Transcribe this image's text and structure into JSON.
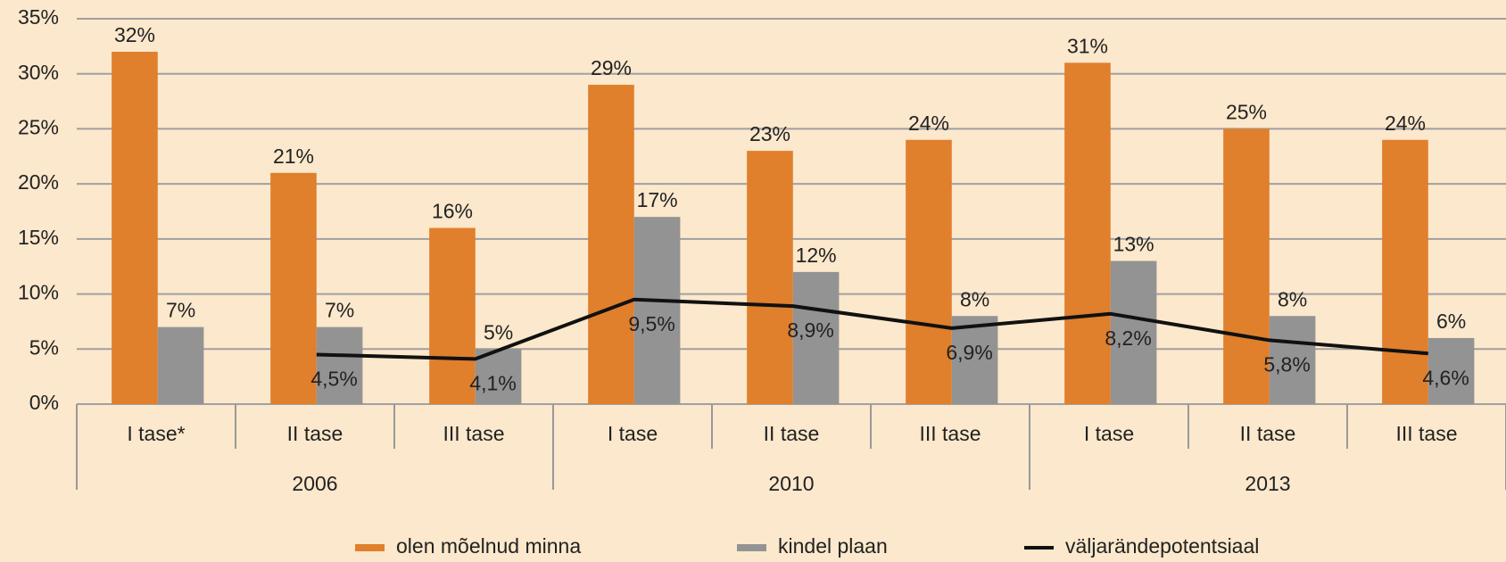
{
  "chart_data": {
    "type": "bar",
    "categories": [
      "I tase*",
      "II tase",
      "III tase",
      "I tase",
      "II tase",
      "III tase",
      "I tase",
      "II tase",
      "III tase"
    ],
    "groups": [
      "2006",
      "2010",
      "2013"
    ],
    "series": [
      {
        "name": "olen mõelnud minna",
        "type": "bar",
        "color": "#e07f2c",
        "values": [
          32,
          21,
          16,
          29,
          23,
          24,
          31,
          25,
          24
        ],
        "value_labels": [
          "32%",
          "21%",
          "16%",
          "29%",
          "23%",
          "24%",
          "31%",
          "25%",
          "24%"
        ]
      },
      {
        "name": "kindel plaan",
        "type": "bar",
        "color": "#939393",
        "values": [
          7,
          7,
          5,
          17,
          12,
          8,
          13,
          8,
          6
        ],
        "value_labels": [
          "7%",
          "7%",
          "5%",
          "17%",
          "12%",
          "8%",
          "13%",
          "8%",
          "6%"
        ]
      },
      {
        "name": "väljarändepotentsiaal",
        "type": "line",
        "color": "#111111",
        "values": [
          null,
          4.5,
          4.1,
          9.5,
          8.9,
          6.9,
          8.2,
          5.8,
          4.6
        ],
        "value_labels": [
          null,
          "4,5%",
          "4,1%",
          "9,5%",
          "8,9%",
          "6,9%",
          "8,2%",
          "5,8%",
          "4,6%"
        ]
      }
    ],
    "ylim": [
      0,
      35
    ],
    "yticks": [
      {
        "value": 0,
        "label": "0%"
      },
      {
        "value": 5,
        "label": "5%"
      },
      {
        "value": 10,
        "label": "10%"
      },
      {
        "value": 15,
        "label": "15%"
      },
      {
        "value": 20,
        "label": "20%"
      },
      {
        "value": 25,
        "label": "25%"
      },
      {
        "value": 30,
        "label": "30%"
      },
      {
        "value": 35,
        "label": "35%"
      }
    ],
    "grid": true,
    "legend": "bottom"
  }
}
